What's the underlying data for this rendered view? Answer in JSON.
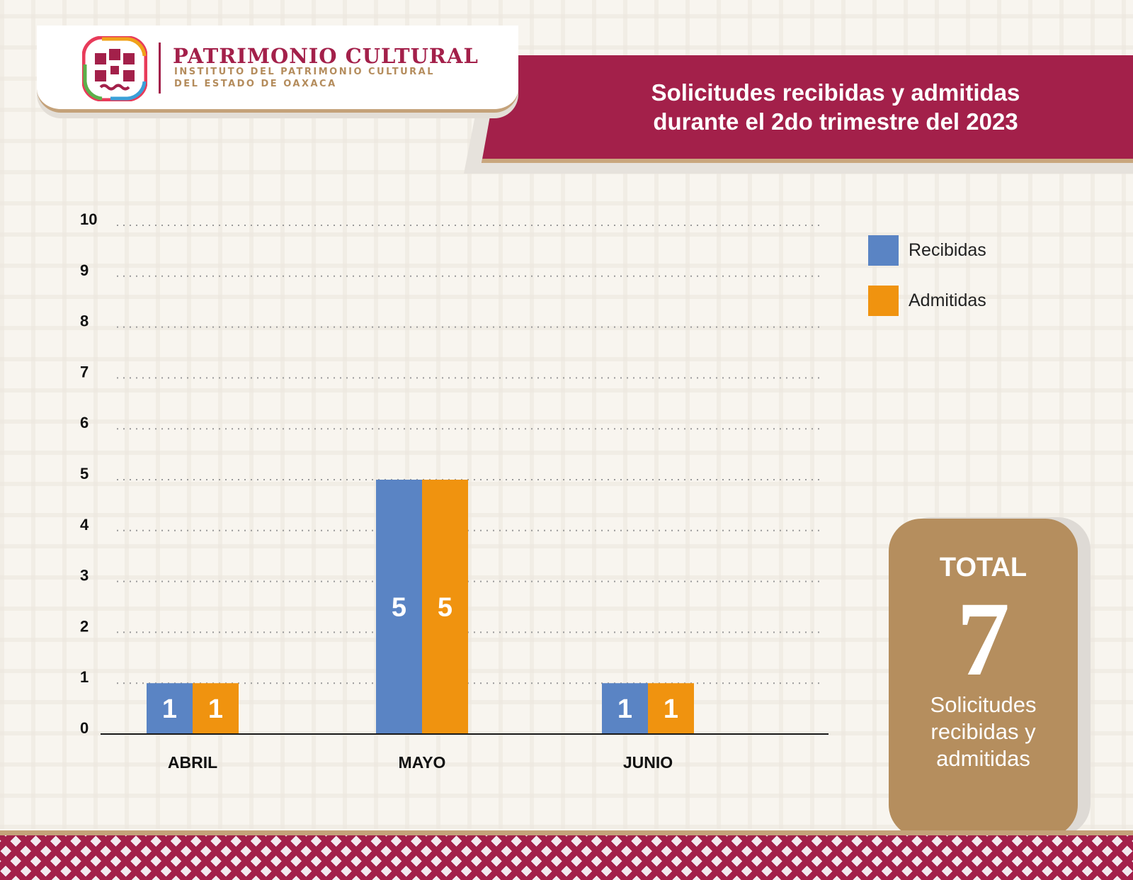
{
  "header": {
    "logo_title": "PATRIMONIO CULTURAL",
    "logo_subtitle_line1": "INSTITUTO DEL PATRIMONIO CULTURAL",
    "logo_subtitle_line2": "DEL ESTADO DE OAXACA",
    "banner_title": "Solicitudes recibidas y admitidas durante el 2do trimestre del 2023"
  },
  "colors": {
    "brand": "#a3204a",
    "gold": "#b58e5e",
    "recibidas": "#5a84c4",
    "admitidas": "#f0930f"
  },
  "legend": {
    "position": "top-right",
    "items": [
      {
        "label": "Recibidas",
        "color": "#5a84c4"
      },
      {
        "label": "Admitidas",
        "color": "#f0930f"
      }
    ]
  },
  "total": {
    "title": "TOTAL",
    "value": "7",
    "caption": "Solicitudes recibidas y admitidas"
  },
  "chart_data": {
    "type": "bar",
    "title": "Solicitudes recibidas y admitidas durante el 2do trimestre del 2023",
    "categories": [
      "ABRIL",
      "MAYO",
      "JUNIO"
    ],
    "series": [
      {
        "name": "Recibidas",
        "values": [
          1,
          5,
          1
        ],
        "color": "#5a84c4"
      },
      {
        "name": "Admitidas",
        "values": [
          1,
          5,
          1
        ],
        "color": "#f0930f"
      }
    ],
    "yticks": [
      0,
      1,
      2,
      3,
      4,
      5,
      6,
      7,
      8,
      9,
      10
    ],
    "ylim": [
      0,
      10
    ],
    "xlabel": "",
    "ylabel": "",
    "grid": true,
    "data_labels": true
  }
}
